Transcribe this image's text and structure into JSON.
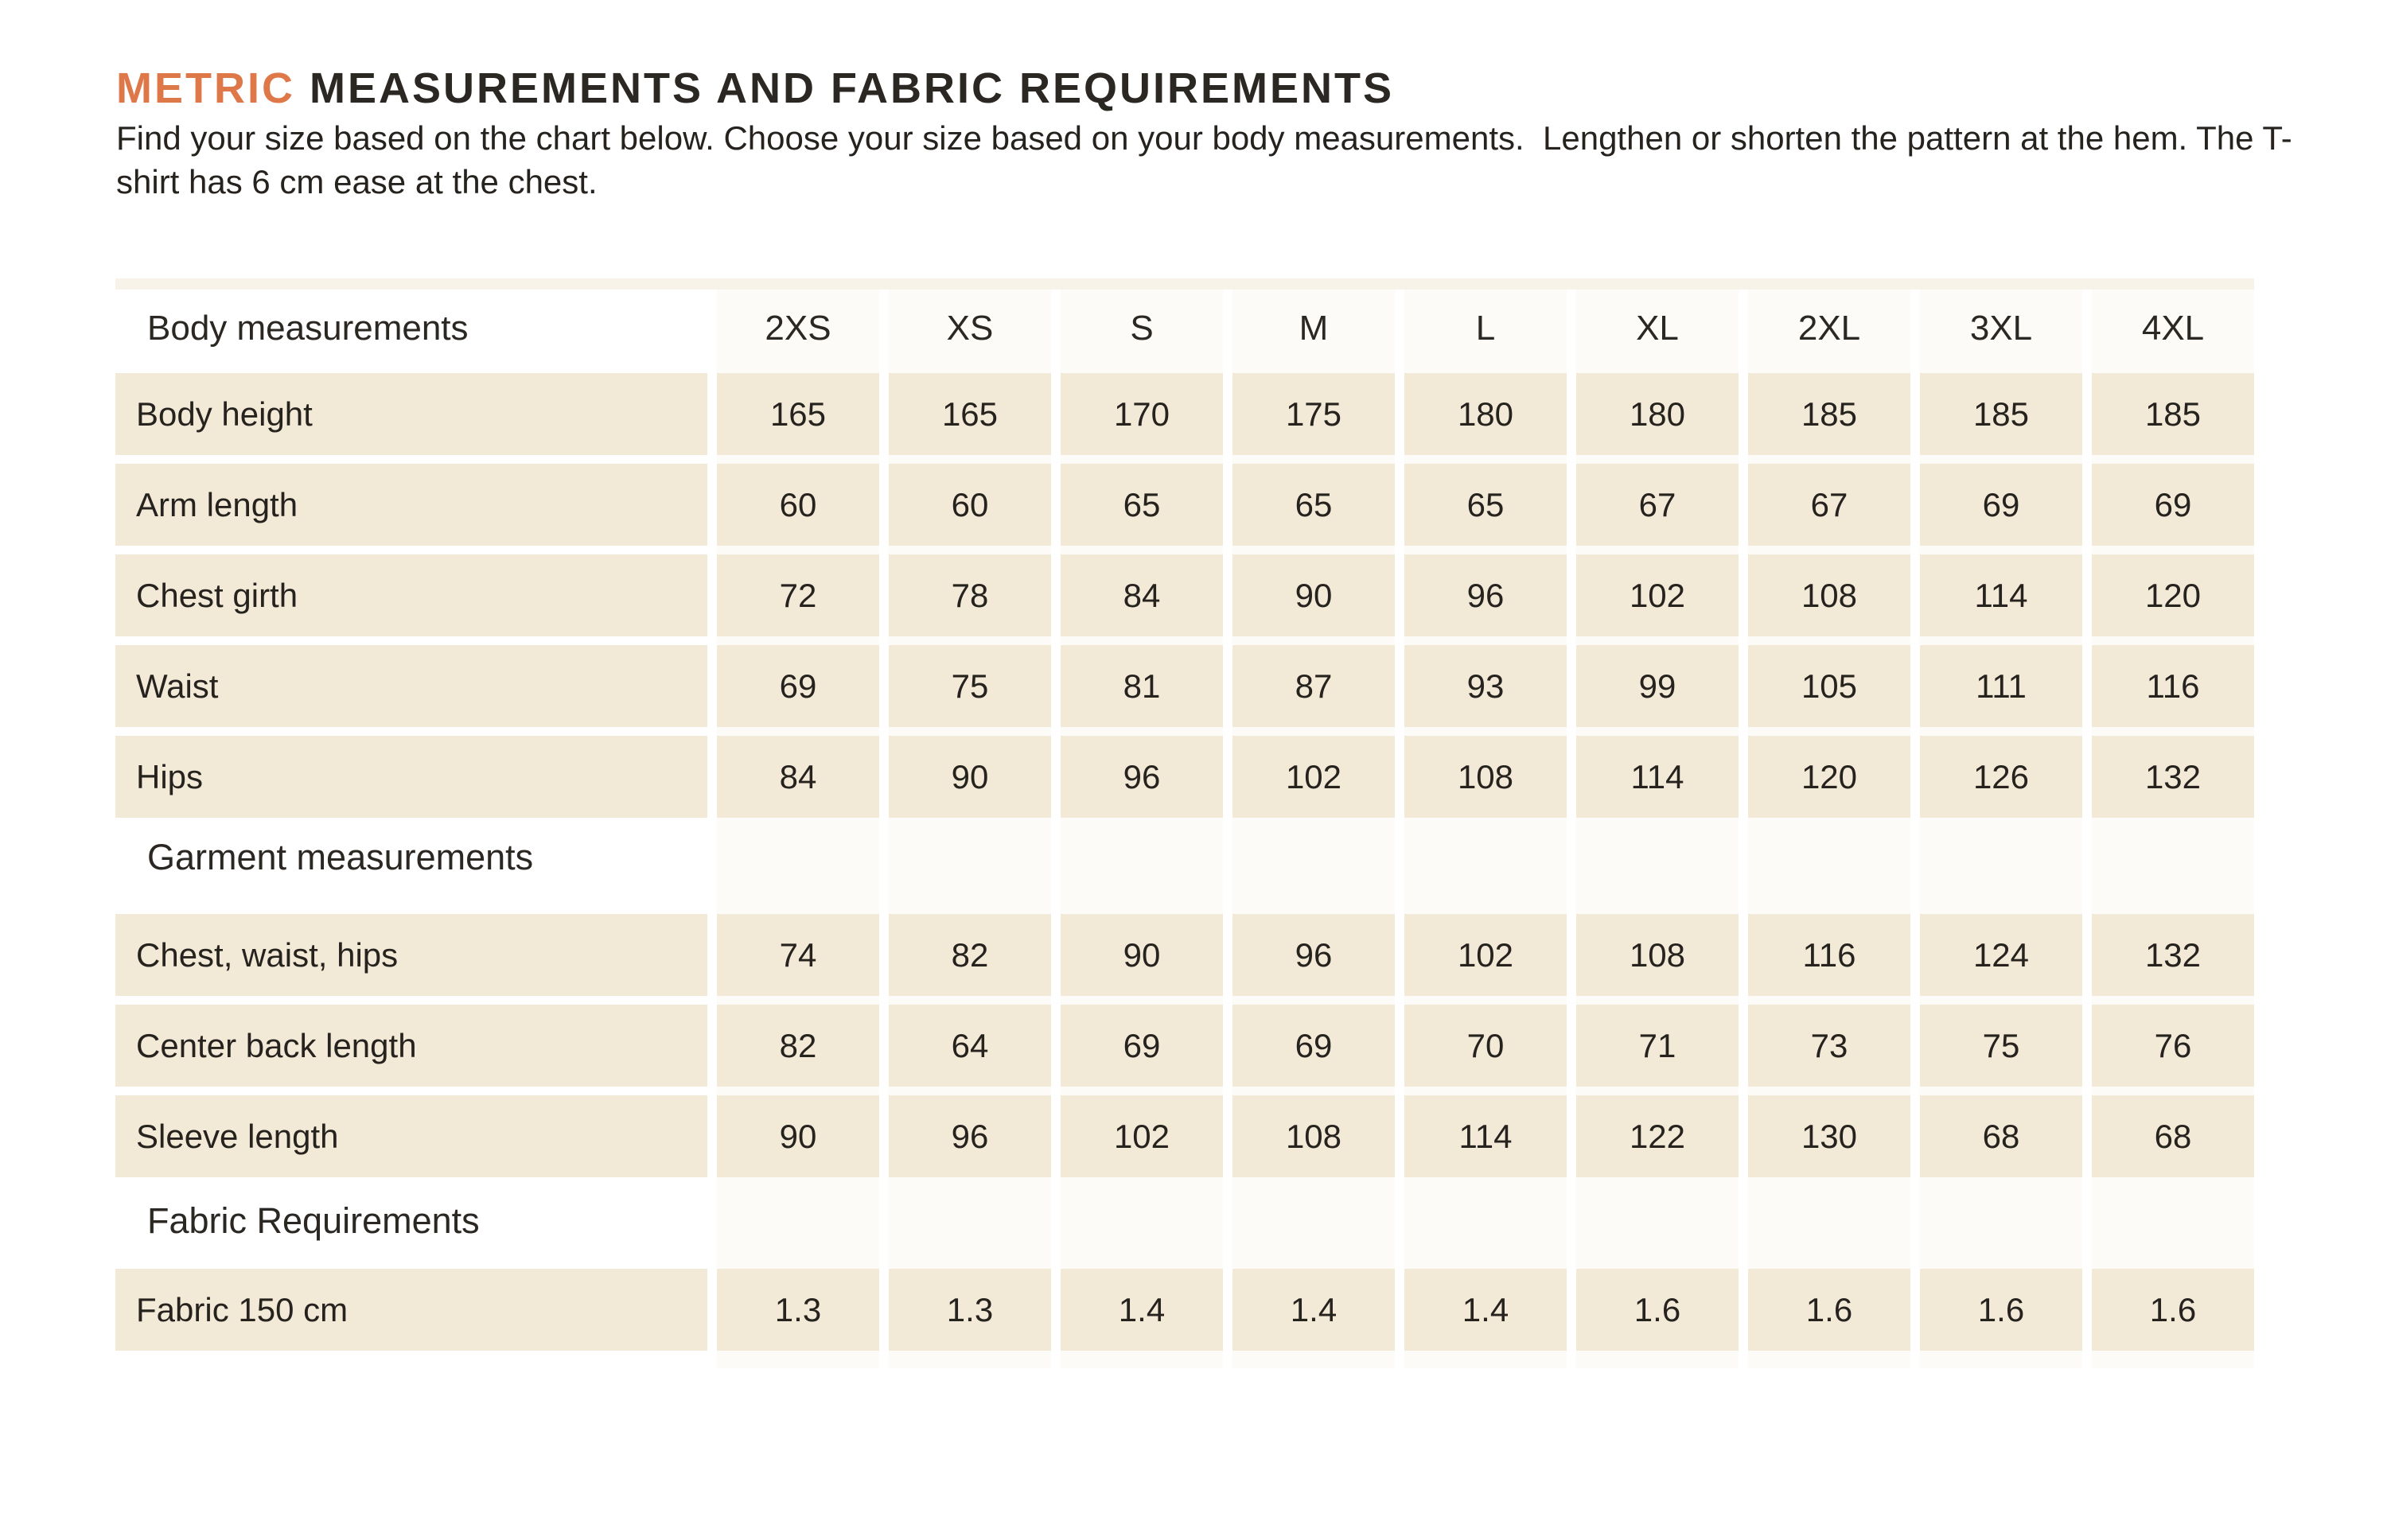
{
  "page": {
    "title_accent": "METRIC",
    "title_rest": " MEASUREMENTS AND FABRIC REQUIREMENTS",
    "intro": "Find your size based on the chart below. Choose your size based on your body measurements.  Lengthen or shorten the pattern at the hem. The T-shirt has 6 cm ease at the chest."
  },
  "colors": {
    "accent_orange": "#df7849",
    "cell_beige": "#f2e9d7",
    "text_dark": "#26221e"
  },
  "size_chart": {
    "header_label": "Body measurements",
    "columns": [
      "2XS",
      "XS",
      "S",
      "M",
      "L",
      "XL",
      "2XL",
      "3XL",
      "4XL"
    ],
    "body_rows": [
      {
        "label": "Body height",
        "values": [
          "165",
          "165",
          "170",
          "175",
          "180",
          "180",
          "185",
          "185",
          "185"
        ]
      },
      {
        "label": "Arm length",
        "values": [
          "60",
          "60",
          "65",
          "65",
          "65",
          "67",
          "67",
          "69",
          "69"
        ]
      },
      {
        "label": "Chest girth",
        "values": [
          "72",
          "78",
          "84",
          "90",
          "96",
          "102",
          "108",
          "114",
          "120"
        ]
      },
      {
        "label": "Waist",
        "values": [
          "69",
          "75",
          "81",
          "87",
          "93",
          "99",
          "105",
          "111",
          "116"
        ]
      },
      {
        "label": "Hips",
        "values": [
          "84",
          "90",
          "96",
          "102",
          "108",
          "114",
          "120",
          "126",
          "132"
        ]
      }
    ],
    "garment_heading": "Garment measurements",
    "garment_rows": [
      {
        "label": "Chest, waist, hips",
        "values": [
          "74",
          "82",
          "90",
          "96",
          "102",
          "108",
          "116",
          "124",
          "132"
        ]
      },
      {
        "label": "Center back length",
        "values": [
          "82",
          "64",
          "69",
          "69",
          "70",
          "71",
          "73",
          "75",
          "76"
        ]
      },
      {
        "label": "Sleeve length",
        "values": [
          "90",
          "96",
          "102",
          "108",
          "114",
          "122",
          "130",
          "68",
          "68"
        ]
      }
    ],
    "fabric_heading": "Fabric Requirements",
    "fabric_rows": [
      {
        "label": "Fabric 150 cm",
        "values": [
          "1.3",
          "1.3",
          "1.4",
          "1.4",
          "1.4",
          "1.6",
          "1.6",
          "1.6",
          "1.6"
        ]
      }
    ]
  }
}
